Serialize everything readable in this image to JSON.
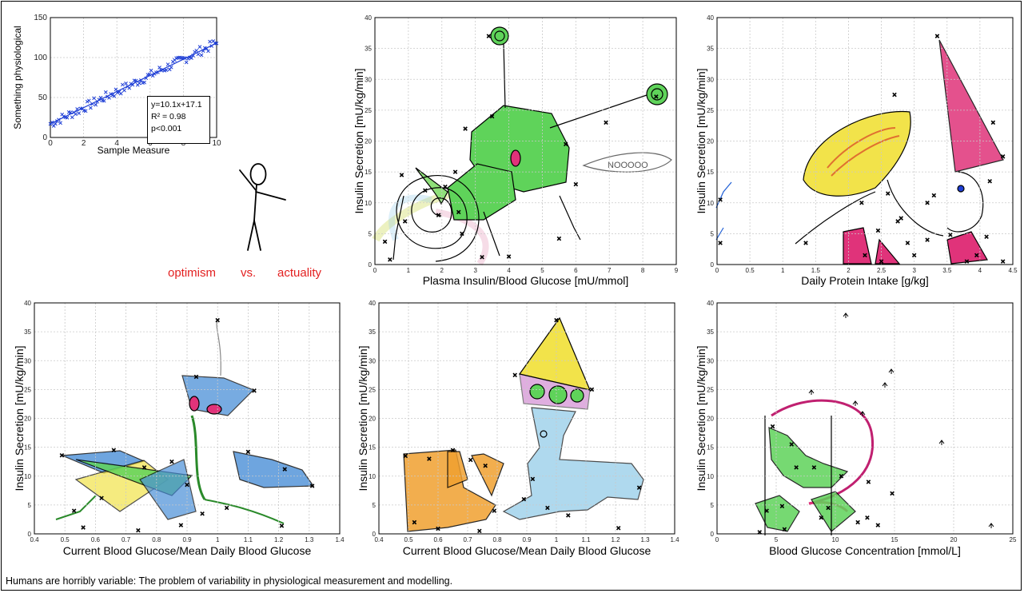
{
  "caption": "Humans are horribly variable:  The problem of variability in physiological measurement and modelling.",
  "labels": {
    "optimism": "optimism",
    "vs": "vs.",
    "actuality": "actuality"
  },
  "colors": {
    "regression_points": "#1f3fd6",
    "regression_line": "#1f3fd6",
    "red_text": "#e32020",
    "green_fill": "#5fd35a",
    "blue_fill": "#4a8fd8",
    "yellow_fill": "#f2e34a",
    "magenta_fill": "#e0337a",
    "orange_fill": "#f0a030"
  },
  "chart_data": [
    {
      "type": "scatter",
      "xlabel": "Sample Measure",
      "ylabel": "Something physiological",
      "xlim": [
        0,
        10
      ],
      "ylim": [
        0,
        150
      ],
      "xticks": [
        "0",
        "2",
        "4",
        "6",
        "8",
        "10"
      ],
      "yticks": [
        "0",
        "50",
        "100",
        "150"
      ],
      "grid": true,
      "fit": {
        "slope": 10.1,
        "intercept": 17.1
      },
      "annotation": [
        "y=10.1x+17.1",
        "R² = 0.98",
        "p<0.001"
      ],
      "n_points": 100,
      "x_range": [
        0,
        10
      ],
      "y_range_approx": [
        14,
        123
      ]
    },
    {
      "type": "scatter",
      "xlabel": "Plasma Insulin/Blood Glucose [mU/mmol]",
      "ylabel": "Insulin Secretion [mU/kg/min]",
      "xlim": [
        0,
        9
      ],
      "ylim": [
        0,
        40
      ],
      "xticks": [
        "0",
        "1",
        "2",
        "3",
        "4",
        "5",
        "6",
        "7",
        "8",
        "9"
      ],
      "yticks": [
        "0",
        "5",
        "10",
        "15",
        "20",
        "25",
        "30",
        "35",
        "40"
      ],
      "grid": true,
      "annotation": [
        "NOOOOO"
      ],
      "points": [
        {
          "x": 3.4,
          "y": 37
        },
        {
          "x": 8.4,
          "y": 27.2
        },
        {
          "x": 3.5,
          "y": 24
        },
        {
          "x": 2.7,
          "y": 22
        },
        {
          "x": 5.7,
          "y": 19.5
        },
        {
          "x": 6.9,
          "y": 23
        },
        {
          "x": 6.0,
          "y": 13
        },
        {
          "x": 2.4,
          "y": 15
        },
        {
          "x": 0.8,
          "y": 14.5
        },
        {
          "x": 1.5,
          "y": 12
        },
        {
          "x": 2.1,
          "y": 12.6
        },
        {
          "x": 0.9,
          "y": 7
        },
        {
          "x": 1.9,
          "y": 8
        },
        {
          "x": 2.5,
          "y": 8.5
        },
        {
          "x": 5.5,
          "y": 4.2
        },
        {
          "x": 3.2,
          "y": 1.2
        },
        {
          "x": 4.0,
          "y": 1.3
        },
        {
          "x": 0.3,
          "y": 3.7
        },
        {
          "x": 0.45,
          "y": 0.8
        },
        {
          "x": 2.6,
          "y": 5
        }
      ]
    },
    {
      "type": "scatter",
      "xlabel": "Daily Protein Intake [g/kg]",
      "ylabel": "Insulin Secretion [mU/kg/min]",
      "xlim": [
        0,
        4.5
      ],
      "ylim": [
        0,
        40
      ],
      "xticks": [
        "0",
        "0.5",
        "1",
        "1.5",
        "2",
        "2.5",
        "3",
        "3.5",
        "4",
        "4.5"
      ],
      "yticks": [
        "0",
        "5",
        "10",
        "15",
        "20",
        "25",
        "30",
        "35",
        "40"
      ],
      "grid": true,
      "points": [
        {
          "x": 3.35,
          "y": 37
        },
        {
          "x": 2.7,
          "y": 27.5
        },
        {
          "x": 4.35,
          "y": 17.5
        },
        {
          "x": 4.2,
          "y": 23
        },
        {
          "x": 4.15,
          "y": 13.5
        },
        {
          "x": 3.2,
          "y": 10
        },
        {
          "x": 3.3,
          "y": 11.2
        },
        {
          "x": 2.6,
          "y": 11.5
        },
        {
          "x": 2.2,
          "y": 10
        },
        {
          "x": 2.8,
          "y": 7.5
        },
        {
          "x": 2.45,
          "y": 5.5
        },
        {
          "x": 2.75,
          "y": 7
        },
        {
          "x": 3.2,
          "y": 4
        },
        {
          "x": 3.55,
          "y": 4.8
        },
        {
          "x": 3.0,
          "y": 1.5
        },
        {
          "x": 2.9,
          "y": 3.5
        },
        {
          "x": 2.25,
          "y": 1.5
        },
        {
          "x": 2.5,
          "y": 0.5
        },
        {
          "x": 3.8,
          "y": 0.5
        },
        {
          "x": 3.95,
          "y": 1.5
        },
        {
          "x": 4.1,
          "y": 4.5
        },
        {
          "x": 4.35,
          "y": 0.5
        },
        {
          "x": 1.35,
          "y": 3.5
        },
        {
          "x": 0.05,
          "y": 10.5
        },
        {
          "x": 0.05,
          "y": 3.5
        }
      ]
    },
    {
      "type": "scatter",
      "xlabel": "Current Blood Glucose/Mean Daily Blood Glucose",
      "ylabel": "Insulin Secretion [mU/kg/min]",
      "xlim": [
        0.4,
        1.4
      ],
      "ylim": [
        0,
        40
      ],
      "xticks": [
        "0.4",
        "0.5",
        "0.6",
        "0.7",
        "0.8",
        "0.9",
        "1",
        "1.1",
        "1.2",
        "1.3",
        "1.4"
      ],
      "yticks": [
        "0",
        "5",
        "10",
        "15",
        "20",
        "25",
        "30",
        "35",
        "40"
      ],
      "grid": true,
      "points": [
        {
          "x": 1.0,
          "y": 37
        },
        {
          "x": 1.12,
          "y": 24.8
        },
        {
          "x": 0.93,
          "y": 27.2
        },
        {
          "x": 0.49,
          "y": 13.6
        },
        {
          "x": 0.66,
          "y": 14.5
        },
        {
          "x": 0.85,
          "y": 12.5
        },
        {
          "x": 0.76,
          "y": 11.5
        },
        {
          "x": 1.1,
          "y": 14.2
        },
        {
          "x": 1.22,
          "y": 11.2
        },
        {
          "x": 1.31,
          "y": 8.3
        },
        {
          "x": 0.53,
          "y": 4
        },
        {
          "x": 0.56,
          "y": 1.1
        },
        {
          "x": 0.62,
          "y": 6.2
        },
        {
          "x": 0.74,
          "y": 0.6
        },
        {
          "x": 0.88,
          "y": 1.5
        },
        {
          "x": 0.95,
          "y": 3.5
        },
        {
          "x": 1.03,
          "y": 4.5
        },
        {
          "x": 1.21,
          "y": 1.4
        },
        {
          "x": 0.9,
          "y": 8.5
        }
      ]
    },
    {
      "type": "scatter",
      "xlabel": "Current Blood Glucose/Mean Daily Blood Glucose",
      "ylabel": "Insulin Secretion [mU/kg/min]",
      "xlim": [
        0.4,
        1.4
      ],
      "ylim": [
        0,
        40
      ],
      "xticks": [
        "0.4",
        "0.5",
        "0.6",
        "0.7",
        "0.8",
        "0.9",
        "1",
        "1.1",
        "1.2",
        "1.3",
        "1.4"
      ],
      "yticks": [
        "0",
        "5",
        "10",
        "15",
        "20",
        "25",
        "30",
        "35",
        "40"
      ],
      "grid": true,
      "points": [
        {
          "x": 1.0,
          "y": 37
        },
        {
          "x": 0.86,
          "y": 27.5
        },
        {
          "x": 1.12,
          "y": 25
        },
        {
          "x": 0.49,
          "y": 13.5
        },
        {
          "x": 0.65,
          "y": 14.5
        },
        {
          "x": 0.57,
          "y": 13
        },
        {
          "x": 0.76,
          "y": 11.8
        },
        {
          "x": 0.71,
          "y": 12.8
        },
        {
          "x": 1.28,
          "y": 8
        },
        {
          "x": 0.52,
          "y": 2
        },
        {
          "x": 0.6,
          "y": 0.9
        },
        {
          "x": 0.74,
          "y": 0.5
        },
        {
          "x": 0.79,
          "y": 4
        },
        {
          "x": 0.89,
          "y": 6
        },
        {
          "x": 0.97,
          "y": 4.5
        },
        {
          "x": 1.04,
          "y": 3.2
        },
        {
          "x": 1.21,
          "y": 1
        },
        {
          "x": 0.92,
          "y": 9.5
        }
      ]
    },
    {
      "type": "scatter",
      "xlabel": "Blood Glucose Concentration [mmol/L]",
      "ylabel": "Insulin Secretion [mU/kg/min]",
      "xlim": [
        0,
        25
      ],
      "ylim": [
        0,
        40
      ],
      "xticks": [
        "0",
        "5",
        "10",
        "15",
        "20",
        "25"
      ],
      "yticks": [
        "0",
        "5",
        "10",
        "15",
        "20",
        "25",
        "30",
        "35",
        "40"
      ],
      "grid": true,
      "points": [
        {
          "x": 4.7,
          "y": 18.6
        },
        {
          "x": 6.3,
          "y": 15.5
        },
        {
          "x": 8.2,
          "y": 11.5
        },
        {
          "x": 10.5,
          "y": 10
        },
        {
          "x": 12.8,
          "y": 9
        },
        {
          "x": 14.8,
          "y": 7
        },
        {
          "x": 4.2,
          "y": 4
        },
        {
          "x": 5.5,
          "y": 4.8
        },
        {
          "x": 3.6,
          "y": 0.3
        },
        {
          "x": 5.7,
          "y": 0.8
        },
        {
          "x": 8.8,
          "y": 2.8
        },
        {
          "x": 11.9,
          "y": 2
        },
        {
          "x": 12.7,
          "y": 2.8
        },
        {
          "x": 13.6,
          "y": 1.5
        },
        {
          "x": 6.7,
          "y": 11.5
        },
        {
          "x": 9.4,
          "y": 4.5
        }
      ]
    }
  ]
}
